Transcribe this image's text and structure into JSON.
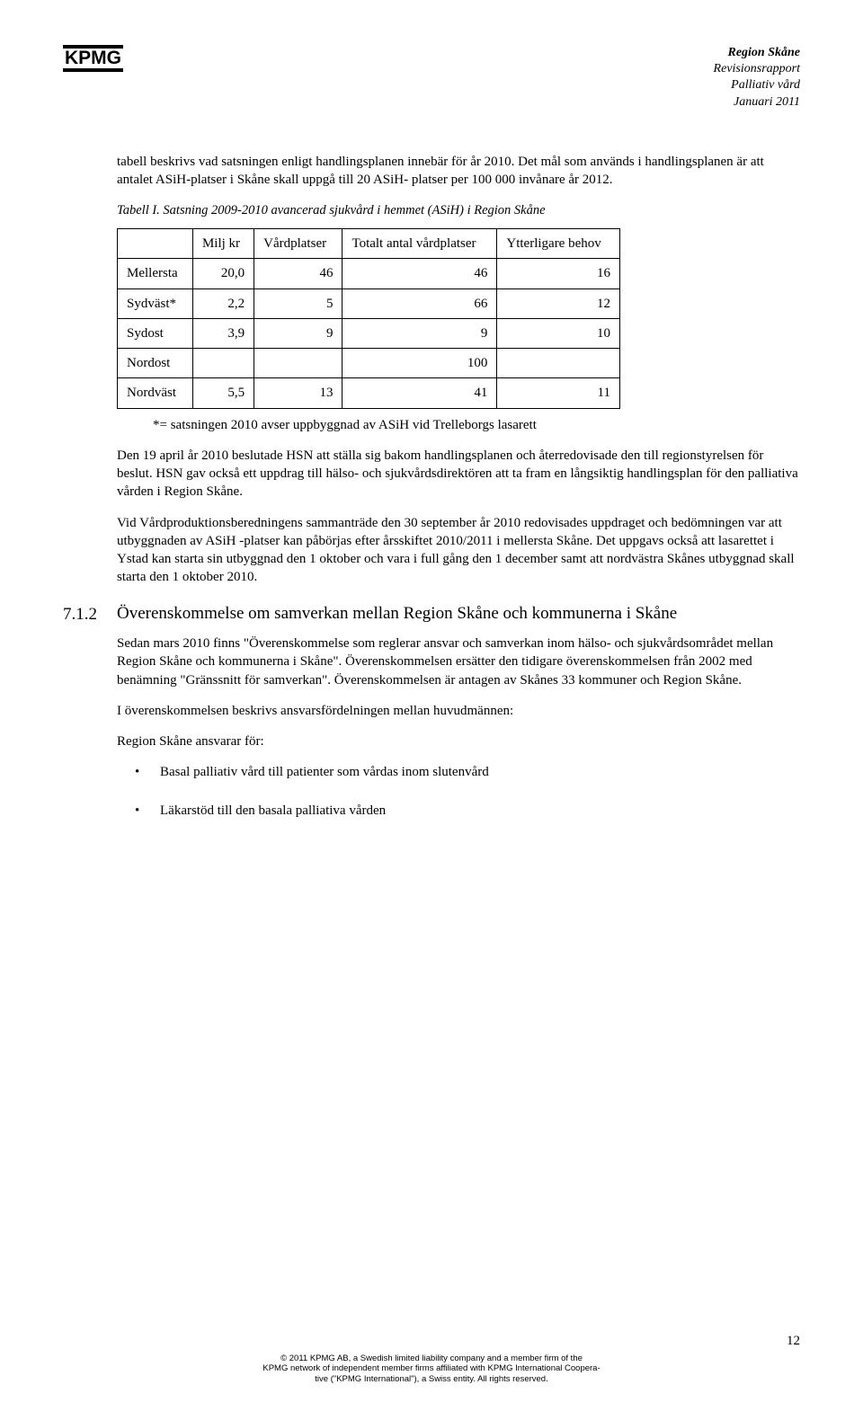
{
  "logo": "KPMG",
  "header": {
    "l1": "Region Skåne",
    "l2": "Revisionsrapport",
    "l3": "Palliativ vård",
    "l4": "Januari 2011"
  },
  "para1": "tabell beskrivs vad satsningen enligt handlingsplanen innebär för år 2010. Det mål som används i handlingsplanen är att antalet ASiH-platser i Skåne skall uppgå till 20 ASiH- platser per 100 000 invånare år 2012.",
  "table_caption": "Tabell I. Satsning 2009-2010 avancerad sjukvård i hemmet (ASiH) i Region Skåne",
  "table": {
    "head": [
      "",
      "Milj kr",
      "Vårdplatser",
      "Totalt antal vårdplatser",
      "Ytterligare behov"
    ],
    "rows": [
      [
        "Mellersta",
        "20,0",
        "46",
        "46",
        "16"
      ],
      [
        "Sydväst*",
        "2,2",
        "5",
        "66",
        "12"
      ],
      [
        "Sydost",
        "3,9",
        "9",
        "9",
        "10"
      ],
      [
        "Nordost",
        "",
        "",
        "100",
        ""
      ],
      [
        "Nordväst",
        "5,5",
        "13",
        "41",
        "11"
      ]
    ]
  },
  "table_footnote": "*= satsningen 2010 avser uppbyggnad av ASiH vid Trelleborgs lasarett",
  "para2": "Den 19 april år 2010 beslutade HSN att ställa sig bakom handlingsplanen och återredovisade den till regionstyrelsen för beslut. HSN gav också ett uppdrag till hälso- och sjukvårdsdirektören att ta fram en långsiktig handlingsplan för den palliativa vården i Region Skåne.",
  "para3": "Vid Vårdproduktionsberedningens sammanträde den 30 september år 2010 redovisades uppdraget och bedömningen var att utbyggnaden av ASiH -platser kan påbörjas efter årsskiftet 2010/2011 i mellersta Skåne. Det uppgavs också att lasarettet i Ystad kan starta sin utbyggnad den 1 oktober och vara i full gång den 1 december samt att nordvästra Skånes utbyggnad skall starta den 1 oktober 2010.",
  "section": {
    "num": "7.1.2",
    "title": "Överenskommelse om samverkan mellan Region Skåne och kommunerna i Skåne"
  },
  "para4": "Sedan mars 2010 finns \"Överenskommelse som reglerar ansvar och samverkan inom hälso- och sjukvårdsområdet mellan Region Skåne och kommunerna i Skåne\". Överenskommelsen ersätter den tidigare överenskommelsen från 2002 med benämning \"Gränssnitt för samverkan\". Överenskommelsen är antagen av Skånes 33 kommuner och Region Skåne.",
  "para5": "I överenskommelsen beskrivs ansvarsfördelningen mellan huvudmännen:",
  "para6": "Region Skåne ansvarar för:",
  "bullets": [
    "Basal palliativ vård till patienter som vårdas inom slutenvård",
    "Läkarstöd till den basala palliativa vården"
  ],
  "page_number": "12",
  "footer": {
    "l1": "© 2011 KPMG AB, a Swedish limited liability company and a member firm of the",
    "l2": "KPMG network of independent member firms affiliated with KPMG International Coopera-",
    "l3": "tive (\"KPMG International\"), a Swiss entity. All rights reserved."
  }
}
